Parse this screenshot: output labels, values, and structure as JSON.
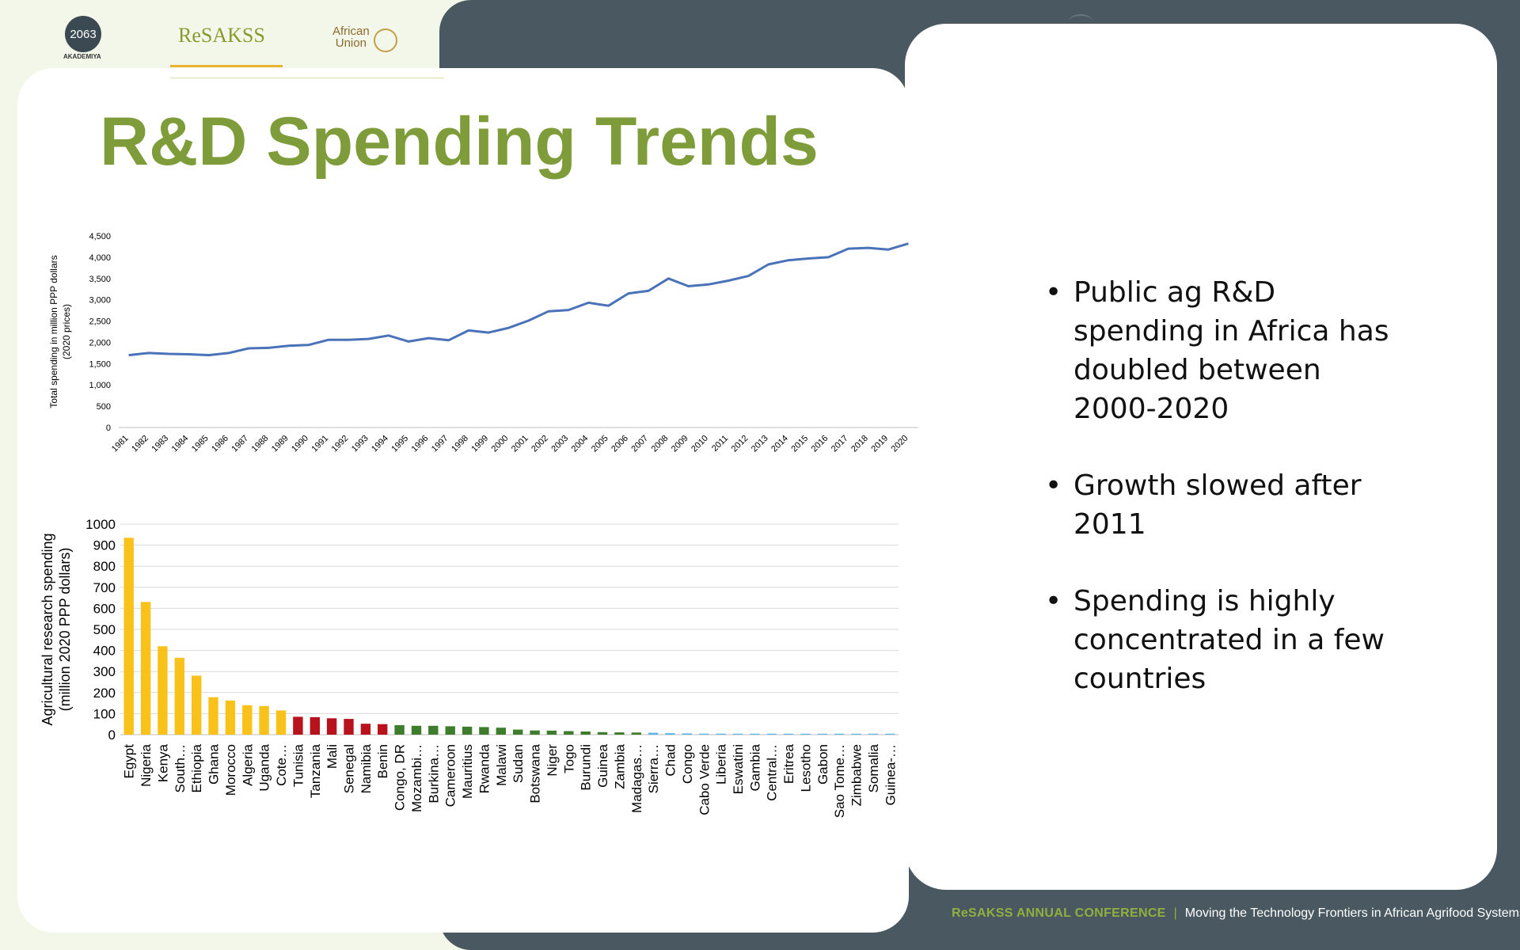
{
  "logos": {
    "akademiya_mark": "2063",
    "akademiya_label": "AKADEMIYA",
    "resakss_label": "ReSAKSS",
    "au_label_line1": "African",
    "au_label_line2": "Union"
  },
  "title": "R&D Spending Trends",
  "bullets": [
    "Public ag R&D spending in Africa has doubled between 2000-2020",
    "Growth slowed after 2011",
    "Spending is highly concentrated in a few countries"
  ],
  "footer": {
    "brand": "ReSAKSS ANNUAL CONFERENCE",
    "separator": "|",
    "tagline": "Moving the Technology Frontiers in African Agrifood Systems"
  },
  "colors": {
    "title_green": "#7f9c3a",
    "line_blue": "#4a72b8",
    "bar_yellow": "#f8c21b",
    "bar_red": "#b8121c",
    "bar_green": "#3e7d2c",
    "bar_blue": "#5bb7e6",
    "dark_panel": "#4a5961"
  },
  "chart_data": [
    {
      "type": "line",
      "title": "",
      "xlabel": "",
      "ylabel": "Total spending in million PPP dollars (2020 prices)",
      "ylim": [
        0,
        4500
      ],
      "yticks": [
        "0",
        "500",
        "1,000",
        "1,500",
        "2,000",
        "2,500",
        "3,000",
        "3,500",
        "4,000",
        "4,500"
      ],
      "x": [
        "1981",
        "1982",
        "1983",
        "1984",
        "1985",
        "1986",
        "1987",
        "1988",
        "1989",
        "1990",
        "1991",
        "1992",
        "1993",
        "1994",
        "1995",
        "1996",
        "1997",
        "1998",
        "1999",
        "2000",
        "2001",
        "2002",
        "2003",
        "2004",
        "2005",
        "2006",
        "2007",
        "2008",
        "2009",
        "2010",
        "2011",
        "2012",
        "2013",
        "2014",
        "2015",
        "2016",
        "2017",
        "2018",
        "2019",
        "2020"
      ],
      "values": [
        1700,
        1750,
        1730,
        1720,
        1700,
        1750,
        1860,
        1870,
        1920,
        1940,
        2060,
        2060,
        2080,
        2160,
        2020,
        2100,
        2050,
        2280,
        2230,
        2340,
        2510,
        2730,
        2760,
        2930,
        2860,
        3150,
        3210,
        3500,
        3320,
        3360,
        3450,
        3560,
        3830,
        3930,
        3970,
        4000,
        4200,
        4220,
        4180,
        4320
      ],
      "grid": false,
      "legend": "none"
    },
    {
      "type": "bar",
      "title": "",
      "xlabel": "",
      "ylabel": "Agricultural research spending (million 2020 PPP dollars)",
      "ylim": [
        0,
        1000
      ],
      "yticks": [
        "0",
        "100",
        "200",
        "300",
        "400",
        "500",
        "600",
        "700",
        "800",
        "900",
        "1000"
      ],
      "grid": true,
      "legend": "none",
      "categories": [
        "Egypt",
        "Nigeria",
        "Kenya",
        "South…",
        "Ethiopia",
        "Ghana",
        "Morocco",
        "Algeria",
        "Uganda",
        "Cote…",
        "Tunisia",
        "Tanzania",
        "Mali",
        "Senegal",
        "Namibia",
        "Benin",
        "Congo, DR",
        "Mozambi…",
        "Burkina…",
        "Cameroon",
        "Mauritius",
        "Rwanda",
        "Malawi",
        "Sudan",
        "Botswana",
        "Niger",
        "Togo",
        "Burundi",
        "Guinea",
        "Zambia",
        "Madagas…",
        "Sierra…",
        "Chad",
        "Congo",
        "Cabo Verde",
        "Liberia",
        "Eswatini",
        "Gambia",
        "Central…",
        "Eritrea",
        "Lesotho",
        "Gabon",
        "Sao Tome…",
        "Zimbabwe",
        "Somalia",
        "Guinea-…"
      ],
      "values": [
        935,
        630,
        420,
        365,
        280,
        178,
        162,
        140,
        136,
        115,
        85,
        83,
        78,
        75,
        52,
        50,
        45,
        42,
        42,
        40,
        38,
        36,
        33,
        24,
        20,
        19,
        17,
        15,
        12,
        11,
        10,
        9,
        7,
        6,
        5,
        5,
        4,
        3,
        3,
        2,
        2,
        1,
        1,
        1,
        1,
        1
      ],
      "groups": [
        "yellow",
        "yellow",
        "yellow",
        "yellow",
        "yellow",
        "yellow",
        "yellow",
        "yellow",
        "yellow",
        "yellow",
        "red",
        "red",
        "red",
        "red",
        "red",
        "red",
        "green",
        "green",
        "green",
        "green",
        "green",
        "green",
        "green",
        "green",
        "green",
        "green",
        "green",
        "green",
        "green",
        "green",
        "green",
        "blue",
        "blue",
        "blue",
        "blue",
        "blue",
        "blue",
        "blue",
        "blue",
        "blue",
        "blue",
        "blue",
        "blue",
        "blue",
        "blue",
        "blue"
      ]
    }
  ]
}
